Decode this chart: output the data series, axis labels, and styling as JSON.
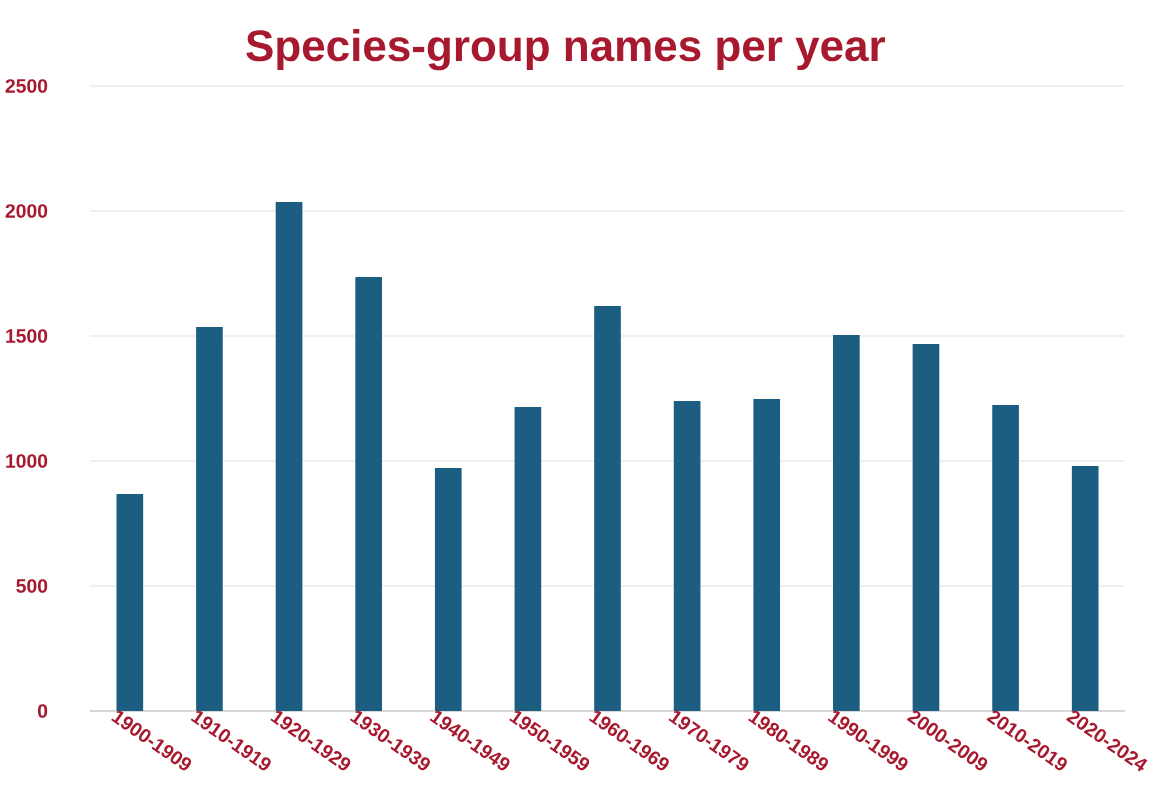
{
  "chart_data": {
    "type": "bar",
    "title": "Species-group names per year",
    "categories": [
      "1900-1909",
      "1910-1919",
      "1920-1929",
      "1930-1939",
      "1940-1949",
      "1950-1959",
      "1960-1969",
      "1970-1979",
      "1980-1989",
      "1990-1999",
      "2000-2009",
      "2010-2019",
      "2020-2024"
    ],
    "values": [
      868,
      1536,
      2036,
      1736,
      972,
      1216,
      1620,
      1240,
      1248,
      1504,
      1468,
      1224,
      980
    ],
    "color": "#1b5e82",
    "ylim": [
      0,
      2500
    ],
    "yticks": [
      0,
      500,
      1000,
      1500,
      2000,
      2500
    ],
    "grid": "y"
  }
}
